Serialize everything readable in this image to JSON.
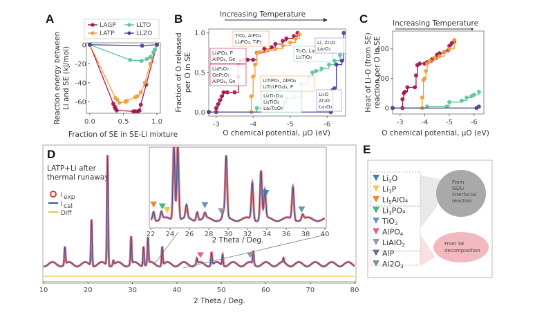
{
  "colors": {
    "LAGP": "#a3174a",
    "LATP": "#f39c3c",
    "LLTO": "#5cc4a0",
    "LLZO": "#4a3f96",
    "Iexp": "#d3393f",
    "Ical": "#2f58a0",
    "Diff": "#e6c340"
  },
  "chart_data": [
    {
      "id": "A",
      "type": "line",
      "panel_label": "A",
      "xlabel": "Fraction of SE in SE-Li mixture",
      "ylabel": "Reaction energy between Li and SE (kJ/mol)",
      "ylabel_lines": [
        "Reaction energy between",
        "Li and SE (kJ/mol)"
      ],
      "xlim": [
        0,
        1
      ],
      "ylim": [
        -72,
        2
      ],
      "xticks": [
        "0.0",
        "0.5",
        "1.0"
      ],
      "xtick_values": [
        0,
        0.5,
        1
      ],
      "yticks": [
        "0",
        "-20",
        "-40",
        "-60"
      ],
      "ytick_values": [
        0,
        -20,
        -40,
        -60
      ],
      "legend_position": "top",
      "series": [
        {
          "name": "LAGP",
          "x": [
            0,
            0.35,
            0.37,
            0.38,
            0.4,
            0.65,
            0.68,
            0.72,
            0.74,
            0.76,
            0.84,
            1.0
          ],
          "y": [
            0,
            -62,
            -65,
            -67,
            -69,
            -70,
            -70,
            -70,
            -69,
            -63,
            -42,
            0
          ]
        },
        {
          "name": "LATP",
          "x": [
            0,
            0.38,
            0.41,
            0.44,
            0.53,
            0.55,
            0.68,
            0.71,
            0.76,
            0.82,
            0.9,
            1.0
          ],
          "y": [
            0,
            -56,
            -58,
            -61,
            -60,
            -59,
            -55,
            -54,
            -50,
            -40,
            -20,
            0
          ]
        },
        {
          "name": "LLTO",
          "x": [
            0,
            0.6,
            0.77,
            0.85,
            0.9,
            0.95,
            0.97,
            1.0
          ],
          "y": [
            0,
            -16,
            -17,
            -15,
            -13,
            -8,
            -5,
            0
          ]
        },
        {
          "name": "LLZO",
          "x": [
            0,
            0.78,
            1.0
          ],
          "y": [
            0,
            -1,
            0
          ]
        }
      ]
    },
    {
      "id": "B",
      "type": "line",
      "panel_label": "B",
      "title_arrow": "Increasing Temperature",
      "xlabel": "O chemical potential, μO (eV)",
      "ylabel_lines": [
        "Fraction of O released",
        "per O in SE"
      ],
      "xlim": [
        -2.8,
        -6.5
      ],
      "ylim": [
        -0.05,
        1.05
      ],
      "xticks": [
        "-3",
        "-4",
        "-5",
        "-6"
      ],
      "xtick_values": [
        -3,
        -4,
        -5,
        -6
      ],
      "yticks": [
        "0.0",
        "0.5",
        "1.0"
      ],
      "ytick_values": [
        0,
        0.5,
        1
      ],
      "series": [
        {
          "name": "LAGP",
          "x": [
            -2.8,
            -3.0,
            -3.0,
            -3.05,
            -3.1,
            -3.15,
            -3.2,
            -3.3,
            -3.5,
            -3.6,
            -3.6,
            -3.65,
            -3.75,
            -3.85,
            -4.0,
            -4.1,
            -4.3,
            -4.5,
            -4.6,
            -4.8,
            -4.9,
            -5.1,
            -5.2
          ],
          "y": [
            0,
            0,
            0.05,
            0.1,
            0.15,
            0.2,
            0.25,
            0.25,
            0.25,
            0.45,
            0.6,
            0.65,
            0.66,
            0.66,
            0.66,
            0.75,
            0.8,
            0.82,
            0.86,
            0.9,
            0.93,
            0.96,
            1.0
          ]
        },
        {
          "name": "LATP",
          "x": [
            -2.8,
            -3.95,
            -3.95,
            -4.0,
            -4.05,
            -4.1,
            -4.2,
            -4.4,
            -4.6,
            -4.8,
            -5.0,
            -5.15,
            -5.25
          ],
          "y": [
            0,
            0,
            0.2,
            0.45,
            0.6,
            0.75,
            0.76,
            0.78,
            0.8,
            0.84,
            0.88,
            0.93,
            0.98
          ]
        },
        {
          "name": "LLTO",
          "x": [
            -2.8,
            -4.1,
            -4.8,
            -4.85,
            -4.9,
            -5.1,
            -5.3,
            -5.5,
            -5.6,
            -5.7,
            -5.85,
            -6.05,
            -6.2,
            -6.35
          ],
          "y": [
            0,
            0.05,
            0.05,
            0.12,
            0.17,
            0.19,
            0.35,
            0.42,
            0.5,
            0.52,
            0.55,
            0.6,
            0.65,
            0.72
          ]
        },
        {
          "name": "LLZO",
          "x": [
            -2.8,
            -6.1,
            -6.15,
            -6.2,
            -6.25,
            -6.4,
            -6.45
          ],
          "y": [
            0,
            0,
            0.28,
            0.3,
            0.6,
            0.65,
            1.0
          ]
        }
      ],
      "annotations": [
        {
          "lines": [
            "TiO₂, AlPO₄",
            "Li₃PO₄, TiP₂"
          ],
          "border": "#f4b98a"
        },
        {
          "lines": [
            "Li₃PO₄, P",
            "AlPO₄, Ge"
          ],
          "border": "#d94a7a"
        },
        {
          "lines": [
            "Li₄P₂O₇",
            "GeP₂O₇",
            "AlPO₄, Ge"
          ],
          "border": "#d94a7a"
        },
        {
          "lines": [
            "LiTiPO₅, AlPO₄",
            "LiTi₂(PO₄)₃, P"
          ],
          "border": "#f4b98a"
        },
        {
          "lines": [
            "Li₄Ti₅O₁₂",
            "Li₄TiO₄",
            "La₂Ti₂O₇"
          ],
          "border": "#a8e0cc"
        },
        {
          "lines": [
            "Ti₂O, La₂O₃",
            "Li₂TiO₃"
          ],
          "border": "#a8e0cc"
        },
        {
          "lines": [
            "Li, Zr₃O",
            "La₂O₃"
          ],
          "border": "#a7a3d8"
        },
        {
          "lines": [
            "Li₂O",
            "Zr₃O",
            "La₂O₃"
          ],
          "border": "#a7a3d8"
        }
      ]
    },
    {
      "id": "C",
      "type": "line",
      "panel_label": "C",
      "title_arrow": "Increasing Temperature",
      "xlabel": "O chemical potential, μO (eV)",
      "ylabel_lines": [
        "Heat of Li-O (from SE)",
        "reaction per O in SE"
      ],
      "xlim": [
        -2.7,
        -6.4
      ],
      "ylim": [
        -40,
        520
      ],
      "xticks": [
        "-3",
        "-4",
        "-5",
        "-6"
      ],
      "xtick_values": [
        -3,
        -4,
        -5,
        -6
      ],
      "yticks": [
        "0",
        "200",
        "400"
      ],
      "ytick_values": [
        0,
        200,
        400
      ],
      "series": [
        {
          "name": "LAGP",
          "x": [
            -2.7,
            -3.1,
            -3.1,
            -3.15,
            -3.2,
            -3.3,
            -3.6,
            -3.65,
            -3.7,
            -3.8,
            -4.0,
            -4.1,
            -4.3,
            -4.5,
            -4.6,
            -4.8,
            -4.95,
            -5.0,
            -5.1,
            -5.2
          ],
          "y": [
            0,
            0,
            60,
            100,
            110,
            140,
            140,
            220,
            290,
            300,
            300,
            310,
            330,
            360,
            370,
            380,
            390,
            420,
            440,
            450
          ]
        },
        {
          "name": "LATP",
          "x": [
            -2.7,
            -3.9,
            -3.9,
            -3.95,
            -4.0,
            -4.05,
            -4.1,
            -4.2,
            -4.4,
            -4.6,
            -4.8,
            -5.0,
            -5.2
          ],
          "y": [
            0,
            0,
            70,
            190,
            200,
            250,
            300,
            320,
            340,
            350,
            380,
            400,
            460
          ]
        },
        {
          "name": "LLTO",
          "x": [
            -2.7,
            -4.1,
            -4.9,
            -5.0,
            -5.5,
            -5.7,
            -5.9,
            -6.0,
            -6.2
          ],
          "y": [
            0,
            10,
            10,
            40,
            50,
            70,
            80,
            90,
            110
          ]
        },
        {
          "name": "LLZO",
          "x": [
            -2.7,
            -6.1,
            -6.2
          ],
          "y": [
            0,
            0,
            10
          ]
        }
      ]
    },
    {
      "id": "D",
      "type": "line",
      "panel_label": "D",
      "title_lines": [
        "LATP+Li after",
        "thermal runaway"
      ],
      "xlabel": "2 Theta / Deg.",
      "xlim": [
        10,
        80
      ],
      "xticks": [
        "10",
        "20",
        "30",
        "40",
        "50",
        "60",
        "70",
        "80"
      ],
      "xtick_values": [
        10,
        20,
        30,
        40,
        50,
        60,
        70,
        80
      ],
      "legend": [
        "I_exp",
        "I_cal",
        "Diff"
      ],
      "legend_labels": {
        "exp_main": "I",
        "exp_sub": "exp",
        "cal_main": "I",
        "cal_sub": "cal",
        "diff": "Diff"
      },
      "peaks": [
        {
          "x": 14.8,
          "h": 0.16
        },
        {
          "x": 20.8,
          "h": 0.42
        },
        {
          "x": 24.4,
          "h": 1.0
        },
        {
          "x": 25.7,
          "h": 0.04
        },
        {
          "x": 29.7,
          "h": 0.25
        },
        {
          "x": 32.5,
          "h": 0.18
        },
        {
          "x": 33.5,
          "h": 0.24
        },
        {
          "x": 36.7,
          "h": 0.17
        },
        {
          "x": 44.5,
          "h": 0.05
        },
        {
          "x": 47.8,
          "h": 0.12
        },
        {
          "x": 50.3,
          "h": 0.1
        },
        {
          "x": 57.2,
          "h": 0.12
        },
        {
          "x": 64.0,
          "h": 0.04
        }
      ],
      "markers": [
        {
          "x": 45.3,
          "phase": "AlPO4"
        },
        {
          "x": 56.5,
          "phase": "LiAlO2"
        }
      ],
      "inset": {
        "xlabel": "2 Theta / Deg.",
        "xlim": [
          22,
          40
        ],
        "xticks": [
          "22",
          "24",
          "26",
          "28",
          "30",
          "32",
          "34",
          "36",
          "38",
          "40"
        ],
        "xtick_values": [
          22,
          24,
          26,
          28,
          30,
          32,
          34,
          36,
          38,
          40
        ],
        "peaks": [
          {
            "x": 22.3,
            "h": 0.14
          },
          {
            "x": 23.1,
            "h": 0.12
          },
          {
            "x": 24.4,
            "h": 1.2
          },
          {
            "x": 24.8,
            "h": 1.2
          },
          {
            "x": 25.7,
            "h": 0.2
          },
          {
            "x": 26.8,
            "h": 0.14
          },
          {
            "x": 27.6,
            "h": 0.08
          },
          {
            "x": 29.5,
            "h": 0.1
          },
          {
            "x": 29.8,
            "h": 0.98
          },
          {
            "x": 32.5,
            "h": 0.58
          },
          {
            "x": 33.4,
            "h": 0.78
          },
          {
            "x": 33.8,
            "h": 0.45
          },
          {
            "x": 36.7,
            "h": 0.52
          },
          {
            "x": 37.7,
            "h": 0.08
          }
        ],
        "markers": [
          {
            "x": 22.3,
            "phase": "Li5AlO4"
          },
          {
            "x": 23.2,
            "phase": "Li3PO4"
          },
          {
            "x": 23.7,
            "phase": "Li3P"
          },
          {
            "x": 27.6,
            "phase": "TiO2"
          },
          {
            "x": 29.3,
            "phase": "LiAlO2"
          },
          {
            "x": 33.9,
            "phase": "Li2O"
          },
          {
            "x": 37.6,
            "phase": "Al2O3"
          }
        ]
      }
    }
  ],
  "panelE": {
    "label": "E",
    "phases": [
      {
        "key": "Li2O",
        "main": "Li",
        "sub": "2",
        "rest": "O",
        "color": "#3a7fc1"
      },
      {
        "key": "Li3P",
        "main": "Li",
        "sub": "3",
        "rest": "P",
        "color": "#f2c94c"
      },
      {
        "key": "Li5AlO4",
        "main": "Li",
        "sub": "5",
        "rest": "AlO₄",
        "color": "#e8893a"
      },
      {
        "key": "Li3PO4",
        "main": "Li",
        "sub": "3",
        "rest": "PO₄",
        "color": "#3fb878"
      },
      {
        "key": "TiO2",
        "main": "TiO",
        "sub": "2",
        "rest": "",
        "color": "#6f8fc9"
      },
      {
        "key": "AlPO4",
        "main": "AlPO",
        "sub": "4",
        "rest": "",
        "color": "#e06470"
      },
      {
        "key": "LiAlO2",
        "main": "LiAlO",
        "sub": "2",
        "rest": "",
        "color": "#9a9aa6"
      },
      {
        "key": "AlP",
        "main": "AlP",
        "sub": "",
        "rest": "",
        "color": "#6b6a8f"
      },
      {
        "key": "Al2O3",
        "main": "Al2O",
        "sub": "3",
        "rest": "",
        "color": "#6a9a9a"
      }
    ],
    "bubble_interfacial": [
      "From",
      "SE/Li",
      "interfacial",
      "reaction"
    ],
    "bubble_decomp": [
      "From SE",
      "decomposition"
    ]
  }
}
